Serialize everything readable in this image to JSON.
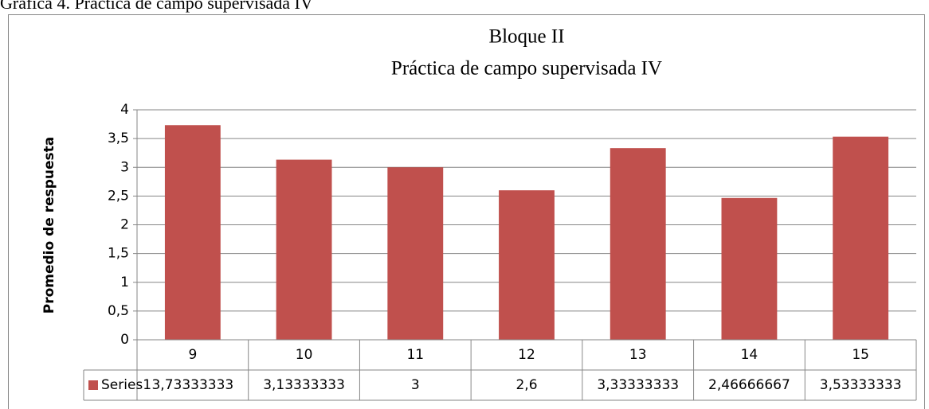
{
  "chart_data": {
    "type": "bar",
    "caption": "Gráfica 4. Práctica de campo supervisada IV",
    "title": "Bloque II",
    "subtitle": "Práctica de campo supervisada IV",
    "y_label": "Promedio de respuesta",
    "categories": [
      "9",
      "10",
      "11",
      "12",
      "13",
      "14",
      "15"
    ],
    "series": [
      {
        "name": "Series1",
        "color": "#c0504d",
        "values": [
          3.73333333,
          3.13333333,
          3,
          2.6,
          3.33333333,
          2.46666667,
          3.53333333
        ],
        "value_labels": [
          "3,73333333",
          "3,13333333",
          "3",
          "2,6",
          "3,33333333",
          "2,46666667",
          "3,53333333"
        ]
      }
    ],
    "ylim": [
      0,
      4
    ],
    "yticks": [
      0,
      {
        "value": 0.5,
        "label": "0,5"
      },
      1,
      {
        "value": 1.5,
        "label": "1,5"
      },
      2,
      {
        "value": 2.5,
        "label": "2,5"
      },
      3,
      {
        "value": 3.5,
        "label": "3,5"
      },
      4
    ],
    "grid": true,
    "data_table": true
  }
}
